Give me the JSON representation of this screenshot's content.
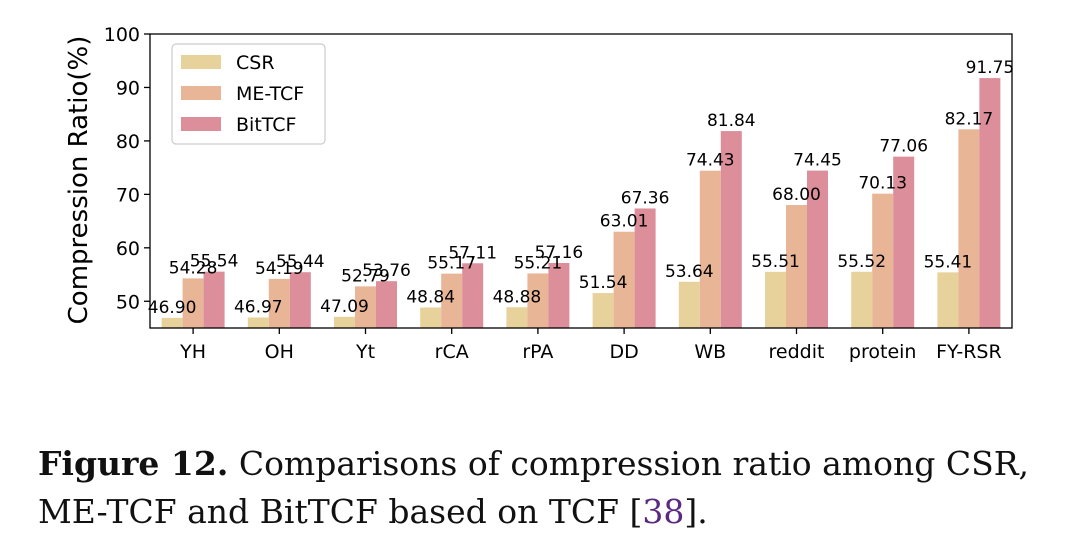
{
  "chart_data": {
    "type": "bar",
    "categories": [
      "YH",
      "OH",
      "Yt",
      "rCA",
      "rPA",
      "DD",
      "WB",
      "reddit",
      "protein",
      "FY-RSR"
    ],
    "series": [
      {
        "name": "CSR",
        "color": "#e8d29c",
        "values": [
          46.9,
          46.97,
          47.09,
          48.84,
          48.88,
          51.54,
          53.64,
          55.51,
          55.52,
          55.41
        ]
      },
      {
        "name": "ME-TCF",
        "color": "#e8b597",
        "values": [
          54.28,
          54.19,
          52.79,
          55.17,
          55.21,
          63.01,
          74.43,
          68.0,
          70.13,
          82.17
        ]
      },
      {
        "name": "BitTCF",
        "color": "#dc8e9a",
        "values": [
          55.54,
          55.44,
          53.76,
          57.11,
          57.16,
          67.36,
          81.84,
          74.45,
          77.06,
          91.75
        ]
      }
    ],
    "labels": [
      [
        "46.90",
        "46.97",
        "47.09",
        "48.84",
        "48.88",
        "51.54",
        "53.64",
        "55.51",
        "55.52",
        "55.41"
      ],
      [
        "54.28",
        "54.19",
        "52.79",
        "55.17",
        "55.21",
        "63.01",
        "74.43",
        "68.00",
        "70.13",
        "82.17"
      ],
      [
        "55.54",
        "55.44",
        "53.76",
        "57.11",
        "57.16",
        "67.36",
        "81.84",
        "74.45",
        "77.06",
        "91.75"
      ]
    ],
    "ylabel": "Compression Ratio(%)",
    "xlabel": "",
    "ylim": [
      45,
      100
    ],
    "yticks": [
      "50",
      "60",
      "70",
      "80",
      "90",
      "100"
    ],
    "legend_position": "top-left",
    "grid": false
  },
  "caption": {
    "label": "Figure 12.",
    "text": " Comparisons of compression ratio among CSR, ME-TCF and BitTCF based on TCF ",
    "ref_open": "[",
    "ref": "38",
    "ref_close": "]."
  }
}
